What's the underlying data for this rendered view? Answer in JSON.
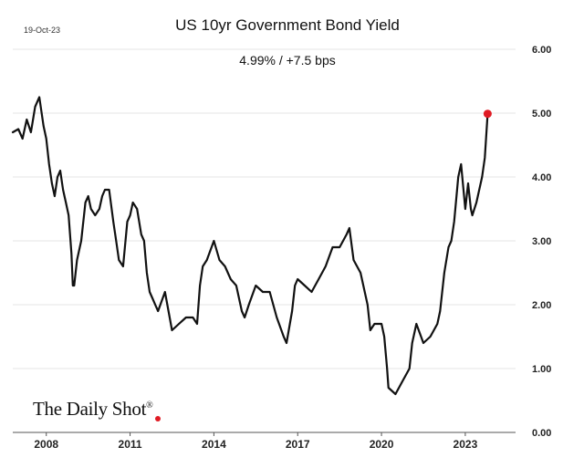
{
  "header": {
    "date": "19-Oct-23",
    "title": "US 10yr Government Bond Yield",
    "subtitle": "4.99%  /  +7.5 bps"
  },
  "brand": {
    "name": "The Daily Shot",
    "mark": "®"
  },
  "colors": {
    "line": "#111111",
    "marker": "#e01b24",
    "grid": "#e6e6e6",
    "axis": "#555555"
  },
  "chart_data": {
    "type": "line",
    "title": "US 10yr Government Bond Yield",
    "annotation": "4.99%  /  +7.5 bps",
    "xlabel": "",
    "ylabel": "",
    "xlim": [
      2006.8,
      2024.8
    ],
    "ylim": [
      0,
      6
    ],
    "x_ticks": [
      2008,
      2011,
      2014,
      2017,
      2020,
      2023
    ],
    "x_tick_labels": [
      "2008",
      "2011",
      "2014",
      "2017",
      "2020",
      "2023"
    ],
    "y_ticks": [
      0,
      1,
      2,
      3,
      4,
      5,
      6
    ],
    "y_tick_labels": [
      "0.00",
      "1.00",
      "2.00",
      "3.00",
      "4.00",
      "5.00",
      "6.00"
    ],
    "grid": true,
    "y_axis_side": "right",
    "series": [
      {
        "name": "US 10yr yield",
        "x": [
          2006.8,
          2007.0,
          2007.15,
          2007.3,
          2007.45,
          2007.6,
          2007.75,
          2007.9,
          2008.0,
          2008.1,
          2008.2,
          2008.3,
          2008.4,
          2008.5,
          2008.6,
          2008.7,
          2008.8,
          2008.9,
          2008.95,
          2009.0,
          2009.1,
          2009.25,
          2009.4,
          2009.5,
          2009.6,
          2009.75,
          2009.9,
          2010.0,
          2010.1,
          2010.25,
          2010.4,
          2010.5,
          2010.6,
          2010.75,
          2010.9,
          2011.0,
          2011.1,
          2011.25,
          2011.4,
          2011.5,
          2011.6,
          2011.7,
          2011.8,
          2011.9,
          2012.0,
          2012.25,
          2012.5,
          2012.75,
          2013.0,
          2013.25,
          2013.4,
          2013.5,
          2013.6,
          2013.75,
          2014.0,
          2014.2,
          2014.4,
          2014.6,
          2014.8,
          2015.0,
          2015.1,
          2015.25,
          2015.5,
          2015.75,
          2016.0,
          2016.25,
          2016.5,
          2016.6,
          2016.8,
          2016.9,
          2017.0,
          2017.25,
          2017.5,
          2017.75,
          2018.0,
          2018.25,
          2018.5,
          2018.75,
          2018.85,
          2019.0,
          2019.25,
          2019.5,
          2019.6,
          2019.75,
          2020.0,
          2020.1,
          2020.2,
          2020.25,
          2020.5,
          2020.75,
          2021.0,
          2021.1,
          2021.25,
          2021.5,
          2021.75,
          2022.0,
          2022.1,
          2022.25,
          2022.4,
          2022.5,
          2022.6,
          2022.75,
          2022.85,
          2023.0,
          2023.1,
          2023.2,
          2023.25,
          2023.4,
          2023.5,
          2023.6,
          2023.7,
          2023.8
        ],
        "values": [
          4.7,
          4.75,
          4.6,
          4.9,
          4.7,
          5.1,
          5.25,
          4.8,
          4.6,
          4.2,
          3.9,
          3.7,
          4.0,
          4.1,
          3.8,
          3.6,
          3.4,
          2.8,
          2.3,
          2.3,
          2.7,
          3.0,
          3.6,
          3.7,
          3.5,
          3.4,
          3.5,
          3.7,
          3.8,
          3.8,
          3.3,
          3.0,
          2.7,
          2.6,
          3.3,
          3.4,
          3.6,
          3.5,
          3.1,
          3.0,
          2.5,
          2.2,
          2.1,
          2.0,
          1.9,
          2.2,
          1.6,
          1.7,
          1.8,
          1.8,
          1.7,
          2.3,
          2.6,
          2.7,
          3.0,
          2.7,
          2.6,
          2.4,
          2.3,
          1.9,
          1.8,
          2.0,
          2.3,
          2.2,
          2.2,
          1.8,
          1.5,
          1.4,
          1.9,
          2.3,
          2.4,
          2.3,
          2.2,
          2.4,
          2.6,
          2.9,
          2.9,
          3.1,
          3.2,
          2.7,
          2.5,
          2.0,
          1.6,
          1.7,
          1.7,
          1.5,
          1.0,
          0.7,
          0.6,
          0.8,
          1.0,
          1.4,
          1.7,
          1.4,
          1.5,
          1.7,
          1.9,
          2.5,
          2.9,
          3.0,
          3.3,
          4.0,
          4.2,
          3.5,
          3.9,
          3.5,
          3.4,
          3.6,
          3.8,
          4.0,
          4.3,
          4.99
        ]
      }
    ],
    "last_point": {
      "x": 2023.8,
      "value": 4.99
    }
  }
}
